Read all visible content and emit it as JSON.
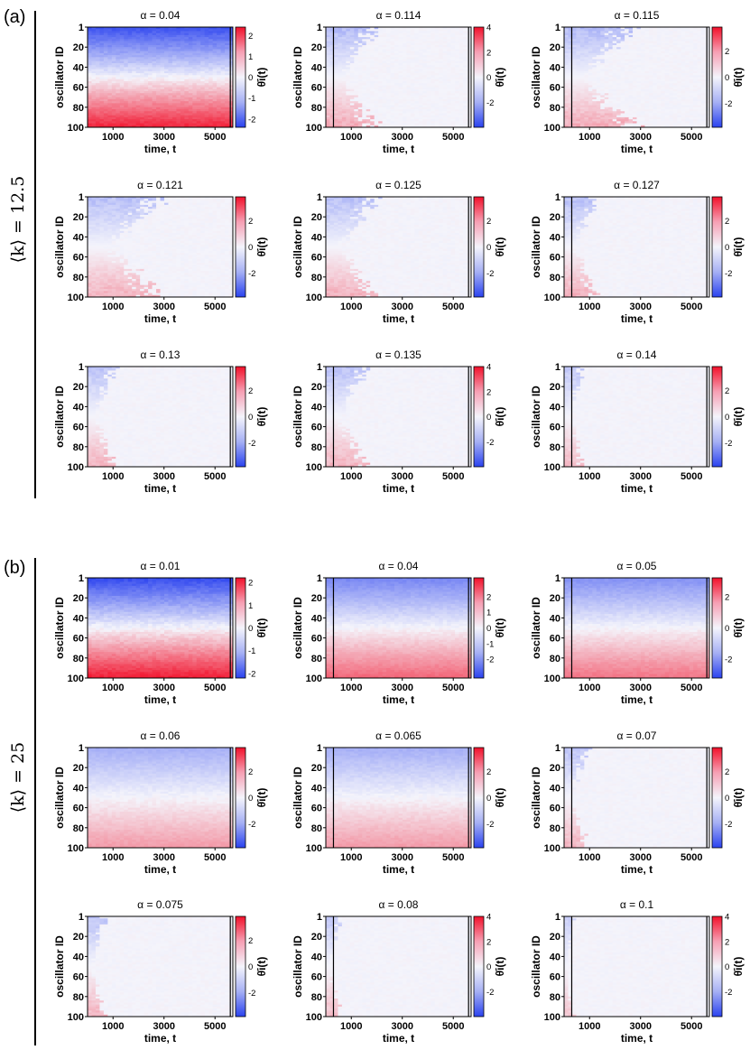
{
  "labels": {
    "a": "(a)",
    "b": "(b)"
  },
  "groups": [
    {
      "label": "⟨k⟩ = 12.5"
    },
    {
      "label": "⟨k⟩ = 25"
    }
  ],
  "colors": {
    "neg": "#2a42ef",
    "mid": "#f4f4fb",
    "pos": "#f2102a"
  },
  "chart_data": [
    {
      "type": "heatmap",
      "group": "a",
      "title": "α = 0.04",
      "ylabel": "oscillator ID",
      "xlabel": "time, t",
      "cbar_label": "θ̇i(t)",
      "yticks": [
        "1",
        "20",
        "40",
        "60",
        "80",
        "100"
      ],
      "xticks": [
        "1000",
        "3000",
        "5000"
      ],
      "xlim": [
        0,
        5700
      ],
      "cbar_ticks": [
        "2",
        "1",
        "0",
        "-1",
        "-2"
      ],
      "vmax": 2.4,
      "spread": 2.2,
      "sync_time": 99999,
      "vlines": [
        5600
      ]
    },
    {
      "type": "heatmap",
      "group": "a",
      "title": "α = 0.114",
      "ylabel": "oscillator ID",
      "xlabel": "time, t",
      "cbar_label": "θ̇i(t)",
      "yticks": [
        "1",
        "20",
        "40",
        "60",
        "80",
        "100"
      ],
      "xticks": [
        "1000",
        "3000",
        "5000"
      ],
      "xlim": [
        0,
        5700
      ],
      "cbar_ticks": [
        "4",
        "2",
        "0",
        "-2"
      ],
      "vmax": 4,
      "spread": 1.6,
      "sync_time": 1500,
      "vlines": [
        300,
        5600
      ]
    },
    {
      "type": "heatmap",
      "group": "a",
      "title": "α = 0.115",
      "ylabel": "oscillator ID",
      "xlabel": "time, t",
      "cbar_label": "θ̇i(t)",
      "yticks": [
        "1",
        "20",
        "40",
        "60",
        "80",
        "100"
      ],
      "xticks": [
        "1000",
        "3000",
        "5000"
      ],
      "xlim": [
        0,
        5700
      ],
      "cbar_ticks": [
        "2",
        "0",
        "-2"
      ],
      "vmax": 3.8,
      "spread": 1.5,
      "sync_time": 2000,
      "vlines": [
        300,
        5600
      ]
    },
    {
      "type": "heatmap",
      "group": "a",
      "title": "α = 0.121",
      "ylabel": "oscillator ID",
      "xlabel": "time, t",
      "cbar_label": "θ̇i(t)",
      "yticks": [
        "1",
        "20",
        "40",
        "60",
        "80",
        "100"
      ],
      "xticks": [
        "1000",
        "3000",
        "5000"
      ],
      "xlim": [
        0,
        5700
      ],
      "cbar_ticks": [
        "2",
        "0",
        "-2"
      ],
      "vmax": 3.8,
      "spread": 1.4,
      "sync_time": 2200,
      "vlines": []
    },
    {
      "type": "heatmap",
      "group": "a",
      "title": "α = 0.125",
      "ylabel": "oscillator ID",
      "xlabel": "time, t",
      "cbar_label": "θ̇i(t)",
      "yticks": [
        "1",
        "20",
        "40",
        "60",
        "80",
        "100"
      ],
      "xticks": [
        "1000",
        "3000",
        "5000"
      ],
      "xlim": [
        0,
        5700
      ],
      "cbar_ticks": [
        "2",
        "0",
        "-2"
      ],
      "vmax": 3.8,
      "spread": 1.4,
      "sync_time": 1500,
      "vlines": [
        5600
      ]
    },
    {
      "type": "heatmap",
      "group": "a",
      "title": "α = 0.127",
      "ylabel": "oscillator ID",
      "xlabel": "time, t",
      "cbar_label": "θ̇i(t)",
      "yticks": [
        "1",
        "20",
        "40",
        "60",
        "80",
        "100"
      ],
      "xticks": [
        "1000",
        "3000",
        "5000"
      ],
      "xlim": [
        0,
        5700
      ],
      "cbar_ticks": [
        "2",
        "0",
        "-2"
      ],
      "vmax": 3.8,
      "spread": 1.4,
      "sync_time": 1000,
      "vlines": [
        300,
        5600
      ]
    },
    {
      "type": "heatmap",
      "group": "a",
      "title": "α = 0.13",
      "ylabel": "oscillator ID",
      "xlabel": "time, t",
      "cbar_label": "θ̇i(t)",
      "yticks": [
        "1",
        "20",
        "40",
        "60",
        "80",
        "100"
      ],
      "xticks": [
        "1000",
        "3000",
        "5000"
      ],
      "xlim": [
        0,
        5700
      ],
      "cbar_ticks": [
        "2",
        "0",
        "-2"
      ],
      "vmax": 3.8,
      "spread": 1.3,
      "sync_time": 800,
      "vlines": [
        5600
      ]
    },
    {
      "type": "heatmap",
      "group": "a",
      "title": "α = 0.135",
      "ylabel": "oscillator ID",
      "xlabel": "time, t",
      "cbar_label": "θ̇i(t)",
      "yticks": [
        "1",
        "20",
        "40",
        "60",
        "80",
        "100"
      ],
      "xticks": [
        "1000",
        "3000",
        "5000"
      ],
      "xlim": [
        0,
        5700
      ],
      "cbar_ticks": [
        "4",
        "2",
        "0",
        "-2"
      ],
      "vmax": 4,
      "spread": 1.4,
      "sync_time": 1300,
      "vlines": [
        300,
        5600
      ]
    },
    {
      "type": "heatmap",
      "group": "a",
      "title": "α = 0.14",
      "ylabel": "oscillator ID",
      "xlabel": "time, t",
      "cbar_label": "θ̇i(t)",
      "yticks": [
        "1",
        "20",
        "40",
        "60",
        "80",
        "100"
      ],
      "xticks": [
        "1000",
        "3000",
        "5000"
      ],
      "xlim": [
        0,
        5700
      ],
      "cbar_ticks": [
        "2",
        "0",
        "-2"
      ],
      "vmax": 3.8,
      "spread": 1.2,
      "sync_time": 600,
      "vlines": [
        300,
        5600
      ]
    },
    {
      "type": "heatmap",
      "group": "b",
      "title": "α = 0.01",
      "ylabel": "oscillator ID",
      "xlabel": "time, t",
      "cbar_label": "θ̇i(t)",
      "yticks": [
        "1",
        "20",
        "40",
        "60",
        "80",
        "100"
      ],
      "xticks": [
        "1000",
        "3000",
        "5000"
      ],
      "xlim": [
        0,
        5700
      ],
      "cbar_ticks": [
        "2",
        "1",
        "0",
        "-1",
        "-2"
      ],
      "vmax": 2.2,
      "spread": 2.1,
      "sync_time": 99999,
      "vlines": [
        5600
      ]
    },
    {
      "type": "heatmap",
      "group": "b",
      "title": "α = 0.04",
      "ylabel": "oscillator ID",
      "xlabel": "time, t",
      "cbar_label": "θ̇i(t)",
      "yticks": [
        "1",
        "20",
        "40",
        "60",
        "80",
        "100"
      ],
      "xticks": [
        "1000",
        "3000",
        "5000"
      ],
      "xlim": [
        0,
        5700
      ],
      "cbar_ticks": [
        "2",
        "1",
        "0",
        "-1",
        "-2"
      ],
      "vmax": 3.2,
      "spread": 2.0,
      "sync_time": 99999,
      "vlines": [
        300,
        5600
      ]
    },
    {
      "type": "heatmap",
      "group": "b",
      "title": "α = 0.05",
      "ylabel": "oscillator ID",
      "xlabel": "time, t",
      "cbar_label": "θ̇i(t)",
      "yticks": [
        "1",
        "20",
        "40",
        "60",
        "80",
        "100"
      ],
      "xticks": [
        "1000",
        "3000",
        "5000"
      ],
      "xlim": [
        0,
        5700
      ],
      "cbar_ticks": [
        "2",
        "0",
        "-2"
      ],
      "vmax": 3.2,
      "spread": 1.8,
      "sync_time": 99999,
      "vlines": [
        300,
        5600
      ]
    },
    {
      "type": "heatmap",
      "group": "b",
      "title": "α = 0.06",
      "ylabel": "oscillator ID",
      "xlabel": "time, t",
      "cbar_label": "θ̇i(t)",
      "yticks": [
        "1",
        "20",
        "40",
        "60",
        "80",
        "100"
      ],
      "xticks": [
        "1000",
        "3000",
        "5000"
      ],
      "xlim": [
        0,
        5700
      ],
      "cbar_ticks": [
        "2",
        "0",
        "-2"
      ],
      "vmax": 3.8,
      "spread": 1.5,
      "sync_time": 99999,
      "vlines": [
        5600
      ]
    },
    {
      "type": "heatmap",
      "group": "b",
      "title": "α = 0.065",
      "ylabel": "oscillator ID",
      "xlabel": "time, t",
      "cbar_label": "θ̇i(t)",
      "yticks": [
        "1",
        "20",
        "40",
        "60",
        "80",
        "100"
      ],
      "xticks": [
        "1000",
        "3000",
        "5000"
      ],
      "xlim": [
        0,
        5700
      ],
      "cbar_ticks": [
        "2",
        "0",
        "-2"
      ],
      "vmax": 3.8,
      "spread": 1.5,
      "sync_time": 99999,
      "vlines": [
        300,
        5600
      ]
    },
    {
      "type": "heatmap",
      "group": "b",
      "title": "α = 0.07",
      "ylabel": "oscillator ID",
      "xlabel": "time, t",
      "cbar_label": "θ̇i(t)",
      "yticks": [
        "1",
        "20",
        "40",
        "60",
        "80",
        "100"
      ],
      "xticks": [
        "1000",
        "3000",
        "5000"
      ],
      "xlim": [
        0,
        5700
      ],
      "cbar_ticks": [
        "2",
        "0",
        "-2"
      ],
      "vmax": 3.8,
      "spread": 1.3,
      "sync_time": 700,
      "vlines": [
        300,
        5600
      ]
    },
    {
      "type": "heatmap",
      "group": "b",
      "title": "α = 0.075",
      "ylabel": "oscillator ID",
      "xlabel": "time, t",
      "cbar_label": "θ̇i(t)",
      "yticks": [
        "1",
        "20",
        "40",
        "60",
        "80",
        "100"
      ],
      "xticks": [
        "1000",
        "3000",
        "5000"
      ],
      "xlim": [
        0,
        5700
      ],
      "cbar_ticks": [
        "2",
        "0",
        "-2"
      ],
      "vmax": 3.8,
      "spread": 1.3,
      "sync_time": 500,
      "vlines": [
        5600
      ]
    },
    {
      "type": "heatmap",
      "group": "b",
      "title": "α = 0.08",
      "ylabel": "oscillator ID",
      "xlabel": "time, t",
      "cbar_label": "θ̇i(t)",
      "yticks": [
        "1",
        "20",
        "40",
        "60",
        "80",
        "100"
      ],
      "xticks": [
        "1000",
        "3000",
        "5000"
      ],
      "xlim": [
        0,
        5700
      ],
      "cbar_ticks": [
        "4",
        "2",
        "0",
        "-2"
      ],
      "vmax": 4,
      "spread": 1.2,
      "sync_time": 450,
      "vlines": [
        300,
        5600
      ]
    },
    {
      "type": "heatmap",
      "group": "b",
      "title": "α = 0.1",
      "ylabel": "oscillator ID",
      "xlabel": "time, t",
      "cbar_label": "θ̇i(t)",
      "yticks": [
        "1",
        "20",
        "40",
        "60",
        "80",
        "100"
      ],
      "xticks": [
        "1000",
        "3000",
        "5000"
      ],
      "xlim": [
        0,
        5700
      ],
      "cbar_ticks": [
        "4",
        "2",
        "0",
        "-2"
      ],
      "vmax": 4,
      "spread": 1.0,
      "sync_time": 300,
      "vlines": [
        300,
        5600
      ]
    }
  ]
}
